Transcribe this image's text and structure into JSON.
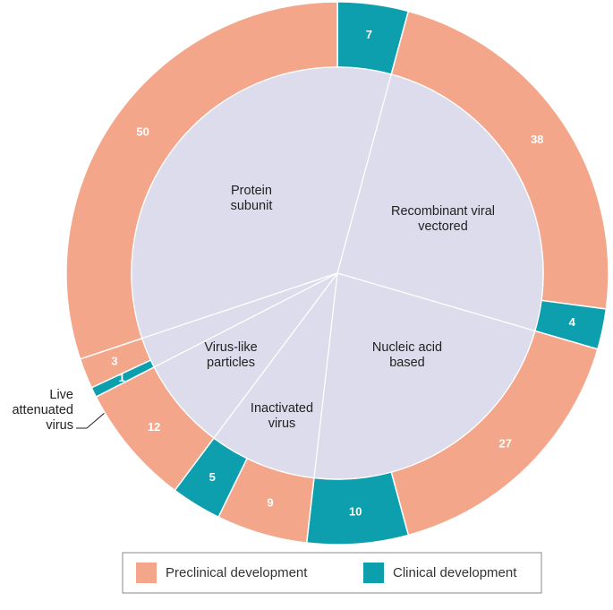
{
  "chart_data": {
    "type": "sunburst",
    "categories": [
      "Protein subunit",
      "Recombinant viral vectored",
      "Nucleic acid based",
      "Inactivated virus",
      "Virus-like particles",
      "Live attenuated virus"
    ],
    "inner_color": "#dcdcec",
    "series": [
      {
        "name": "Preclinical development",
        "color": "#f4a68a"
      },
      {
        "name": "Clinical development",
        "color": "#0e9fae"
      }
    ],
    "segments": [
      {
        "category": 0,
        "series": 1,
        "value": 7
      },
      {
        "category": 1,
        "series": 0,
        "value": 38
      },
      {
        "category": 1,
        "series": 1,
        "value": 4
      },
      {
        "category": 2,
        "series": 0,
        "value": 27
      },
      {
        "category": 2,
        "series": 1,
        "value": 10
      },
      {
        "category": 3,
        "series": 0,
        "value": 9
      },
      {
        "category": 3,
        "series": 1,
        "value": 5
      },
      {
        "category": 4,
        "series": 0,
        "value": 12
      },
      {
        "category": 5,
        "series": 1,
        "value": 1
      },
      {
        "category": 5,
        "series": 0,
        "value": 3
      },
      {
        "category": 0,
        "series": 0,
        "value": 50
      }
    ]
  }
}
